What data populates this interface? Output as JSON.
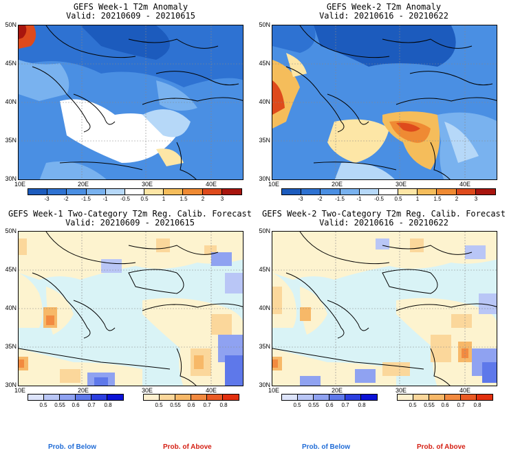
{
  "panels": [
    {
      "title_line1": "GEFS Week-1 T2m Anomaly",
      "title_line2": "Valid: 20210609 - 20210615"
    },
    {
      "title_line1": "GEFS Week-2 T2m Anomaly",
      "title_line2": "Valid: 20210616 - 20210622"
    },
    {
      "title_line1": "GEFS Week-1 Two-Category T2m Reg. Calib. Forecast",
      "title_line2": "Valid: 20210609 - 20210615"
    },
    {
      "title_line1": "GEFS Week-2 Two-Category T2m Reg. Calib. Forecast",
      "title_line2": "Valid: 20210616 - 20210622"
    }
  ],
  "lat_labels": [
    "50N",
    "45N",
    "40N",
    "35N",
    "30N"
  ],
  "lon_labels": [
    "10E",
    "20E",
    "30E",
    "40E"
  ],
  "anomaly_scale": {
    "labels": [
      "-3",
      "-2",
      "-1.5",
      "-1",
      "-0.5",
      "0.5",
      "1",
      "1.5",
      "2",
      "3"
    ],
    "colors": [
      "#1c5bbd",
      "#2e72d2",
      "#4a8fe3",
      "#79b2ef",
      "#b6d8f8",
      "#ffffff",
      "#fde6a6",
      "#f5bd5b",
      "#ef8a33",
      "#de4a1c",
      "#a8150e"
    ]
  },
  "below_scale": {
    "labels": [
      "0.5",
      "0.55",
      "0.6",
      "0.7",
      "0.8"
    ],
    "colors": [
      "#dde4fb",
      "#b9c6f6",
      "#8fa2f1",
      "#5e78ea",
      "#2c3fe0",
      "#0b12d6"
    ]
  },
  "above_scale": {
    "labels": [
      "0.5",
      "0.55",
      "0.6",
      "0.7",
      "0.8"
    ],
    "colors": [
      "#fdf0cf",
      "#fbd79b",
      "#f7b868",
      "#f28a40",
      "#ea5a24",
      "#e2300f"
    ]
  },
  "legend": {
    "below": "Prob. of Below",
    "above": "Prob. of Above"
  },
  "colors": {
    "below_text": "#1f6bd6",
    "above_text": "#d41e12",
    "sea_prob": "#d9f3f6",
    "land_prob": "#fdf3cf"
  }
}
